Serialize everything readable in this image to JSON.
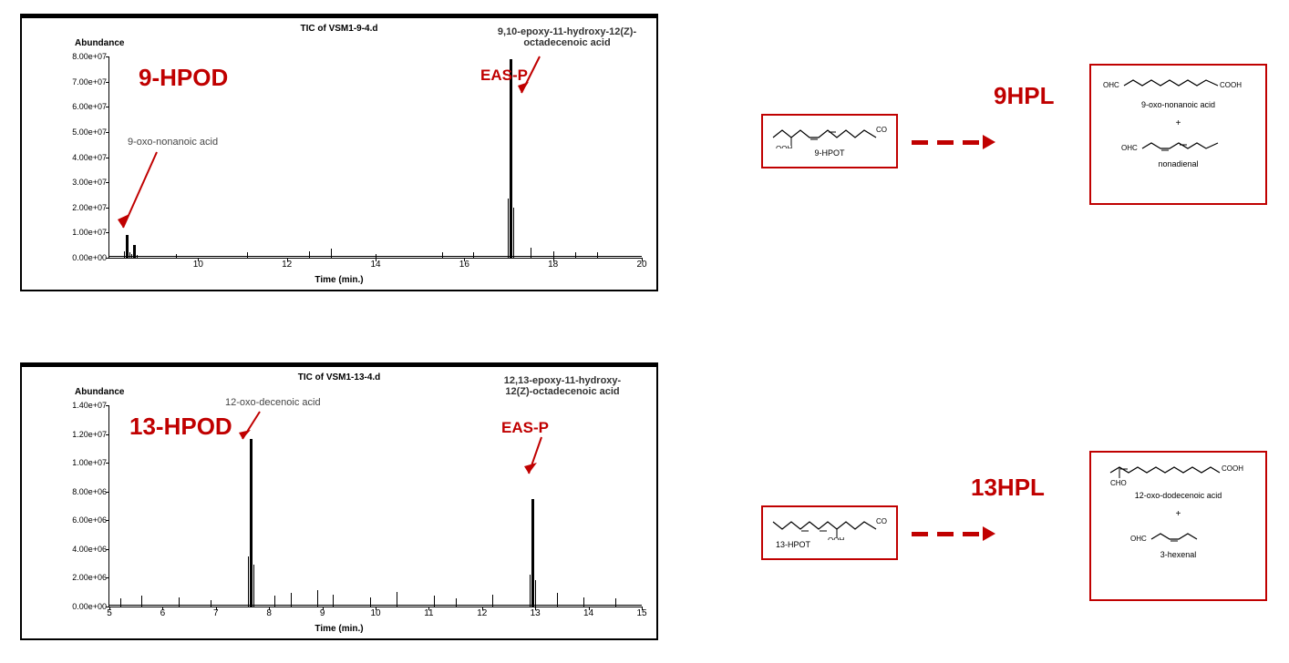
{
  "top_chart": {
    "tic": "TIC of VSM1-9-4.d",
    "ylabel": "Abundance",
    "xlabel": "Time (min.)",
    "title_red": "9-HPOD",
    "eas_label": "EAS-P",
    "peak1_name": "9-oxo-nonanoic acid",
    "peak2_name": "9,10-epoxy-11-hydroxy-12(Z)-\noctadecenoic acid",
    "yticks": [
      "0.00e+00",
      "1.00e+07",
      "2.00e+07",
      "3.00e+07",
      "4.00e+07",
      "5.00e+07",
      "6.00e+07",
      "7.00e+07",
      "8.00e+07"
    ],
    "xticks": [
      "10",
      "12",
      "14",
      "16",
      "18",
      "20"
    ],
    "xmin": 8,
    "xmax": 20,
    "ymax": 80000000.0,
    "peaks": [
      {
        "x": 8.4,
        "h": 9000000.0
      },
      {
        "x": 8.55,
        "h": 5000000.0
      },
      {
        "x": 17.05,
        "h": 79000000.0
      }
    ],
    "noise_bumps": [
      {
        "x": 9.5,
        "h": 1500000.0
      },
      {
        "x": 11.1,
        "h": 2000000.0
      },
      {
        "x": 12.5,
        "h": 2500000.0
      },
      {
        "x": 13.0,
        "h": 3500000.0
      },
      {
        "x": 14.0,
        "h": 1500000.0
      },
      {
        "x": 15.5,
        "h": 2000000.0
      },
      {
        "x": 16.2,
        "h": 2000000.0
      },
      {
        "x": 17.5,
        "h": 4000000.0
      },
      {
        "x": 18.0,
        "h": 2500000.0
      },
      {
        "x": 18.5,
        "h": 2000000.0
      },
      {
        "x": 19.0,
        "h": 2000000.0
      }
    ]
  },
  "bottom_chart": {
    "tic": "TIC of VSM1-13-4.d",
    "ylabel": "Abundance",
    "xlabel": "Time (min.)",
    "title_red": "13-HPOD",
    "eas_label": "EAS-P",
    "peak1_name": "12-oxo-decenoic acid",
    "peak2_name": "12,13-epoxy-11-hydroxy-\n12(Z)-octadecenoic acid",
    "yticks": [
      "0.00e+00",
      "2.00e+06",
      "4.00e+06",
      "6.00e+06",
      "8.00e+06",
      "1.00e+07",
      "1.20e+07",
      "1.40e+07"
    ],
    "xticks": [
      "5",
      "6",
      "7",
      "8",
      "9",
      "10",
      "11",
      "12",
      "13",
      "14",
      "15"
    ],
    "xmin": 5,
    "xmax": 15,
    "ymax": 15000000.0,
    "peaks": [
      {
        "x": 7.65,
        "h": 12500000.0
      },
      {
        "x": 12.95,
        "h": 8000000.0
      }
    ],
    "noise_bumps": [
      {
        "x": 5.2,
        "h": 600000.0
      },
      {
        "x": 5.6,
        "h": 800000.0
      },
      {
        "x": 6.3,
        "h": 700000.0
      },
      {
        "x": 6.9,
        "h": 500000.0
      },
      {
        "x": 8.1,
        "h": 800000.0
      },
      {
        "x": 8.4,
        "h": 1000000.0
      },
      {
        "x": 8.9,
        "h": 1200000.0
      },
      {
        "x": 9.2,
        "h": 900000.0
      },
      {
        "x": 9.9,
        "h": 700000.0
      },
      {
        "x": 10.4,
        "h": 1100000.0
      },
      {
        "x": 11.1,
        "h": 800000.0
      },
      {
        "x": 11.5,
        "h": 600000.0
      },
      {
        "x": 12.2,
        "h": 900000.0
      },
      {
        "x": 13.4,
        "h": 1000000.0
      },
      {
        "x": 13.9,
        "h": 700000.0
      },
      {
        "x": 14.5,
        "h": 600000.0
      }
    ]
  },
  "reaction_top": {
    "label": "9HPL",
    "substrate_name": "9-HPOT",
    "substrate_formula": "OOH",
    "cooh": "COOH",
    "prod1": "9-oxo-nonanoic acid",
    "prod1_l": "OHC",
    "prod1_r": "COOH",
    "plus": "+",
    "prod2": "nonadienal",
    "prod2_l": "OHC"
  },
  "reaction_bottom": {
    "label": "13HPL",
    "substrate_name": "13-HPOT",
    "substrate_formula": "OOH",
    "cooh": "COOH",
    "prod1": "12-oxo-dodecenoic acid",
    "prod1_l": "CHO",
    "prod1_r": "COOH",
    "plus": "+",
    "prod2": "3-hexenal",
    "prod2_l": "OHC"
  },
  "colors": {
    "red": "#c00000",
    "black": "#000000",
    "gray": "#888888"
  }
}
